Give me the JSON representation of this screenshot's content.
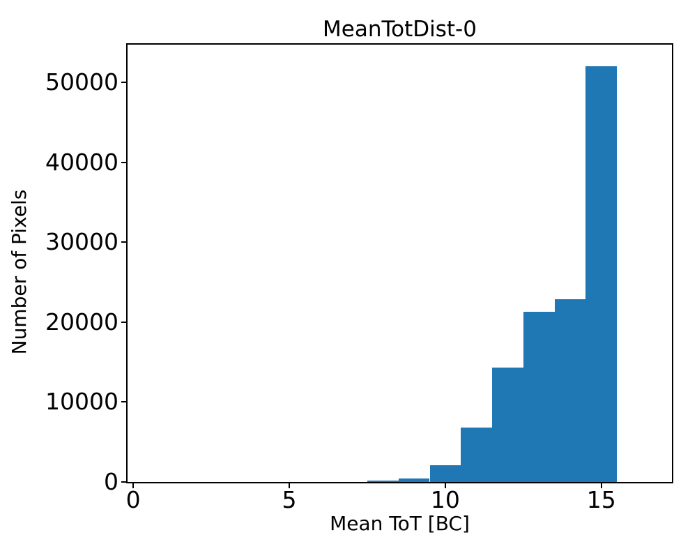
{
  "figure": {
    "background": "#ffffff"
  },
  "chart_data": {
    "type": "bar",
    "subtype": "histogram",
    "title": "MeanTotDist-0",
    "xlabel": "Mean ToT [BC]",
    "ylabel": "Number of Pixels",
    "bar_color": "#1f77b4",
    "axis_color": "#000000",
    "text_color": "#000000",
    "grid": false,
    "legend": false,
    "xlim": [
      -0.18,
      17.26
    ],
    "ylim": [
      0,
      54700
    ],
    "xticks": [
      0,
      5,
      10,
      15
    ],
    "yticks": [
      0,
      10000,
      20000,
      30000,
      40000,
      50000
    ],
    "bin_edges": [
      7.5,
      8.5,
      9.5,
      10.5,
      11.5,
      12.5,
      13.5,
      14.5,
      15.5
    ],
    "counts": [
      150,
      400,
      2100,
      6800,
      14300,
      21300,
      22900,
      52000
    ]
  }
}
